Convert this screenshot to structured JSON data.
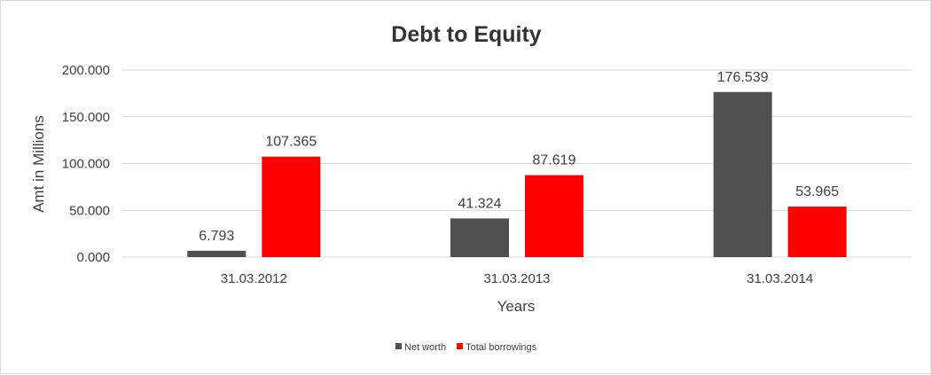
{
  "chart_data": {
    "type": "bar",
    "title": "Debt to Equity",
    "xlabel": "Years",
    "ylabel": "Amt in Millions",
    "categories": [
      "31.03.2012",
      "31.03.2013",
      "31.03.2014"
    ],
    "series": [
      {
        "name": "Net worth",
        "values": [
          6.793,
          41.324,
          176.539
        ],
        "labels": [
          "6.793",
          "41.324",
          "176.539"
        ],
        "color": "#505050"
      },
      {
        "name": "Total borrowings",
        "values": [
          107.365,
          87.619,
          53.965
        ],
        "labels": [
          "107.365",
          "87.619",
          "53.965"
        ],
        "color": "#ff0000"
      }
    ],
    "yticks": [
      0,
      50,
      100,
      150,
      200
    ],
    "ytick_labels": [
      "0.000",
      "50.000",
      "100.000",
      "150.000",
      "200.000"
    ],
    "ylim": [
      0,
      200
    ],
    "grid": true,
    "legend_position": "bottom"
  }
}
